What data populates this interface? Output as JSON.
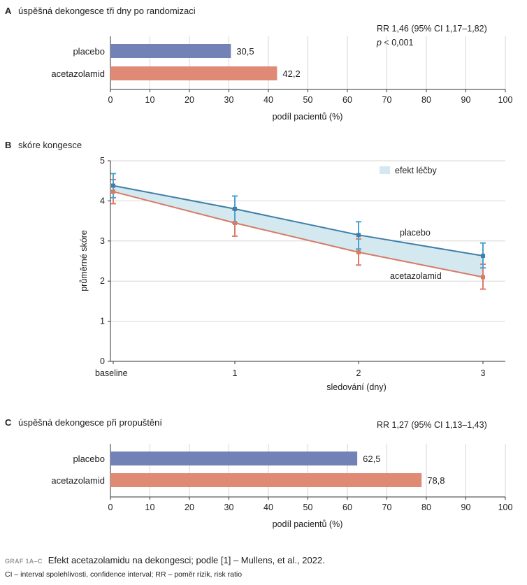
{
  "chart_data": [
    {
      "type": "bar",
      "orientation": "horizontal",
      "panel_letter": "A",
      "title": "úspěšná dekongesce tři dny po randomizaci",
      "categories": [
        "placebo",
        "acetazolamid"
      ],
      "values": [
        30.5,
        42.2
      ],
      "value_labels": [
        "30,5",
        "42,2"
      ],
      "colors": [
        "#7282b6",
        "#e08a76"
      ],
      "xlabel": "podíl pacientů (%)",
      "xlim": [
        0,
        100
      ],
      "xticks": [
        0,
        10,
        20,
        30,
        40,
        50,
        60,
        70,
        80,
        90,
        100
      ],
      "annotation_line1": "RR 1,46 (95% CI 1,17–1,82)",
      "annotation_p_symbol": "p",
      "annotation_p_value": " < 0,001",
      "grid": true
    },
    {
      "type": "line",
      "panel_letter": "B",
      "title": "skóre kongesce",
      "x": [
        0,
        1,
        2,
        3
      ],
      "xtick_labels": [
        "baseline",
        "1",
        "2",
        "3"
      ],
      "xlabel": "sledování (dny)",
      "ylabel": "průměrné skóre",
      "ylim": [
        0,
        5
      ],
      "yticks": [
        0,
        1,
        2,
        3,
        4,
        5
      ],
      "series": [
        {
          "name": "placebo",
          "values": [
            4.38,
            3.8,
            3.15,
            2.63
          ],
          "ci_low": [
            4.08,
            3.45,
            2.8,
            2.33
          ],
          "ci_high": [
            4.68,
            4.12,
            3.48,
            2.95
          ],
          "color": "#3f7fa8",
          "err_color": "#4aa3d0"
        },
        {
          "name": "acetazolamid",
          "values": [
            4.23,
            3.45,
            2.72,
            2.1
          ],
          "ci_low": [
            3.93,
            3.12,
            2.4,
            1.8
          ],
          "ci_high": [
            4.53,
            3.78,
            3.05,
            2.42
          ],
          "color": "#d77a66",
          "err_color": "#e07a68"
        }
      ],
      "legend": {
        "label": "efekt léčby",
        "position": "top-right"
      },
      "fill_color": "#d3e8ef",
      "grid": true
    },
    {
      "type": "bar",
      "orientation": "horizontal",
      "panel_letter": "C",
      "title": "úspěšná dekongesce při propuštění",
      "categories": [
        "placebo",
        "acetazolamid"
      ],
      "values": [
        62.5,
        78.8
      ],
      "value_labels": [
        "62,5",
        "78,8"
      ],
      "colors": [
        "#7282b6",
        "#e08a76"
      ],
      "xlabel": "podíl pacientů (%)",
      "xlim": [
        0,
        100
      ],
      "xticks": [
        0,
        10,
        20,
        30,
        40,
        50,
        60,
        70,
        80,
        90,
        100
      ],
      "annotation_line1": "RR 1,27 (95% CI 1,13–1,43)",
      "grid": true
    }
  ],
  "caption": {
    "label": "GRAF 1A–C",
    "text": "Efekt acetazolamidu na dekongesci; podle [1] – Mullens, et al., 2022."
  },
  "footnote": "CI – interval spolehlivosti, confidence interval; RR – poměr rizik, risk ratio"
}
